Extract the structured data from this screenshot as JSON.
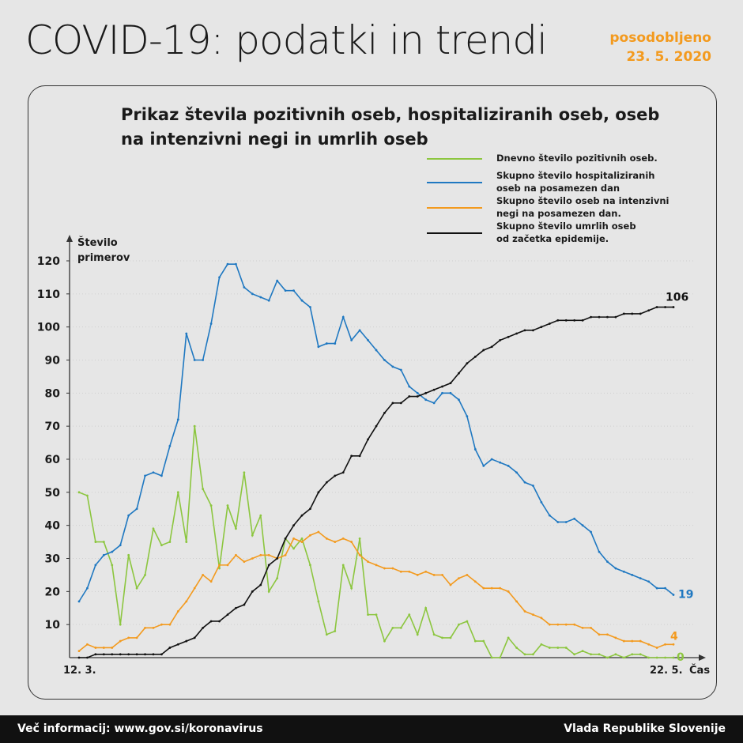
{
  "header": {
    "title": "COVID-19: podatki in trendi",
    "updated_label": "posodobljeno",
    "updated_date": "23. 5. 2020"
  },
  "footer": {
    "info": "Več informacij: www.gov.si/koronavirus",
    "org": "Vlada Republike Slovenije"
  },
  "chart_data": {
    "type": "line",
    "title_line1": "Prikaz števila pozitivnih oseb, hospitaliziranih oseb, oseb",
    "title_line2": "na intenzivni negi in umrlih oseb",
    "ylabel_line1": "Število",
    "ylabel_line2": "primerov",
    "xlabel": "Čas",
    "x_start_label": "12. 3.",
    "x_end_label": "22. 5.",
    "ylim": [
      0,
      120
    ],
    "yticks": [
      10,
      20,
      30,
      40,
      50,
      60,
      70,
      80,
      90,
      100,
      110,
      120
    ],
    "grid": true,
    "legend_position": "top-right",
    "series": [
      {
        "name": "Dnevno število pozitivnih oseb.",
        "color": "#8cc63f",
        "end_label": "0",
        "values": [
          50,
          49,
          35,
          35,
          28,
          10,
          31,
          21,
          25,
          39,
          34,
          35,
          50,
          35,
          70,
          51,
          46,
          27,
          46,
          39,
          56,
          37,
          43,
          20,
          24,
          36,
          33,
          36,
          28,
          17,
          7,
          8,
          28,
          21,
          36,
          13,
          13,
          5,
          9,
          9,
          13,
          7,
          15,
          7,
          6,
          6,
          10,
          11,
          5,
          5,
          0,
          0,
          6,
          3,
          1,
          1,
          4,
          3,
          3,
          3,
          1,
          2,
          1,
          1,
          0,
          1,
          0,
          1,
          1,
          0,
          0,
          0,
          0
        ]
      },
      {
        "name": "Skupno število hospitaliziranih oseb na posamezen dan",
        "name_line1": "Skupno število hospitaliziranih",
        "name_line2": "oseb na posamezen dan",
        "color": "#1f78c1",
        "end_label": "19",
        "values": [
          17,
          21,
          28,
          31,
          32,
          34,
          43,
          45,
          55,
          56,
          55,
          64,
          72,
          98,
          90,
          90,
          101,
          115,
          119,
          119,
          112,
          110,
          109,
          108,
          114,
          111,
          111,
          108,
          106,
          94,
          95,
          95,
          103,
          96,
          99,
          96,
          93,
          90,
          88,
          87,
          82,
          80,
          78,
          77,
          80,
          80,
          78,
          73,
          63,
          58,
          60,
          59,
          58,
          56,
          53,
          52,
          47,
          43,
          41,
          41,
          42,
          40,
          38,
          32,
          29,
          27,
          26,
          25,
          24,
          23,
          21,
          21,
          19
        ]
      },
      {
        "name": "Skupno število oseb na intenzivni negi na posamezen dan.",
        "name_line1": "Skupno število oseb na intenzivni",
        "name_line2": "negi na posamezen dan.",
        "color": "#f39a1e",
        "end_label": "4",
        "values": [
          2,
          4,
          3,
          3,
          3,
          5,
          6,
          6,
          9,
          9,
          10,
          10,
          14,
          17,
          21,
          25,
          23,
          28,
          28,
          31,
          29,
          30,
          31,
          31,
          30,
          31,
          36,
          35,
          37,
          38,
          36,
          35,
          36,
          35,
          31,
          29,
          28,
          27,
          27,
          26,
          26,
          25,
          26,
          25,
          25,
          22,
          24,
          25,
          23,
          21,
          21,
          21,
          20,
          17,
          14,
          13,
          12,
          10,
          10,
          10,
          10,
          9,
          9,
          7,
          7,
          6,
          5,
          5,
          5,
          4,
          3,
          4,
          4
        ]
      },
      {
        "name": "Skupno število umrlih oseb od začetka epidemije.",
        "name_line1": "Skupno število umrlih oseb",
        "name_line2": "od začetka epidemije.",
        "color": "#111111",
        "end_label": "106",
        "values": [
          0,
          0,
          1,
          1,
          1,
          1,
          1,
          1,
          1,
          1,
          1,
          3,
          4,
          5,
          6,
          9,
          11,
          11,
          13,
          15,
          16,
          20,
          22,
          28,
          30,
          36,
          40,
          43,
          45,
          50,
          53,
          55,
          56,
          61,
          61,
          66,
          70,
          74,
          77,
          77,
          79,
          79,
          80,
          81,
          82,
          83,
          86,
          89,
          91,
          93,
          94,
          96,
          97,
          98,
          99,
          99,
          100,
          101,
          102,
          102,
          102,
          102,
          103,
          103,
          103,
          103,
          104,
          104,
          104,
          105,
          106,
          106,
          106
        ]
      }
    ]
  }
}
